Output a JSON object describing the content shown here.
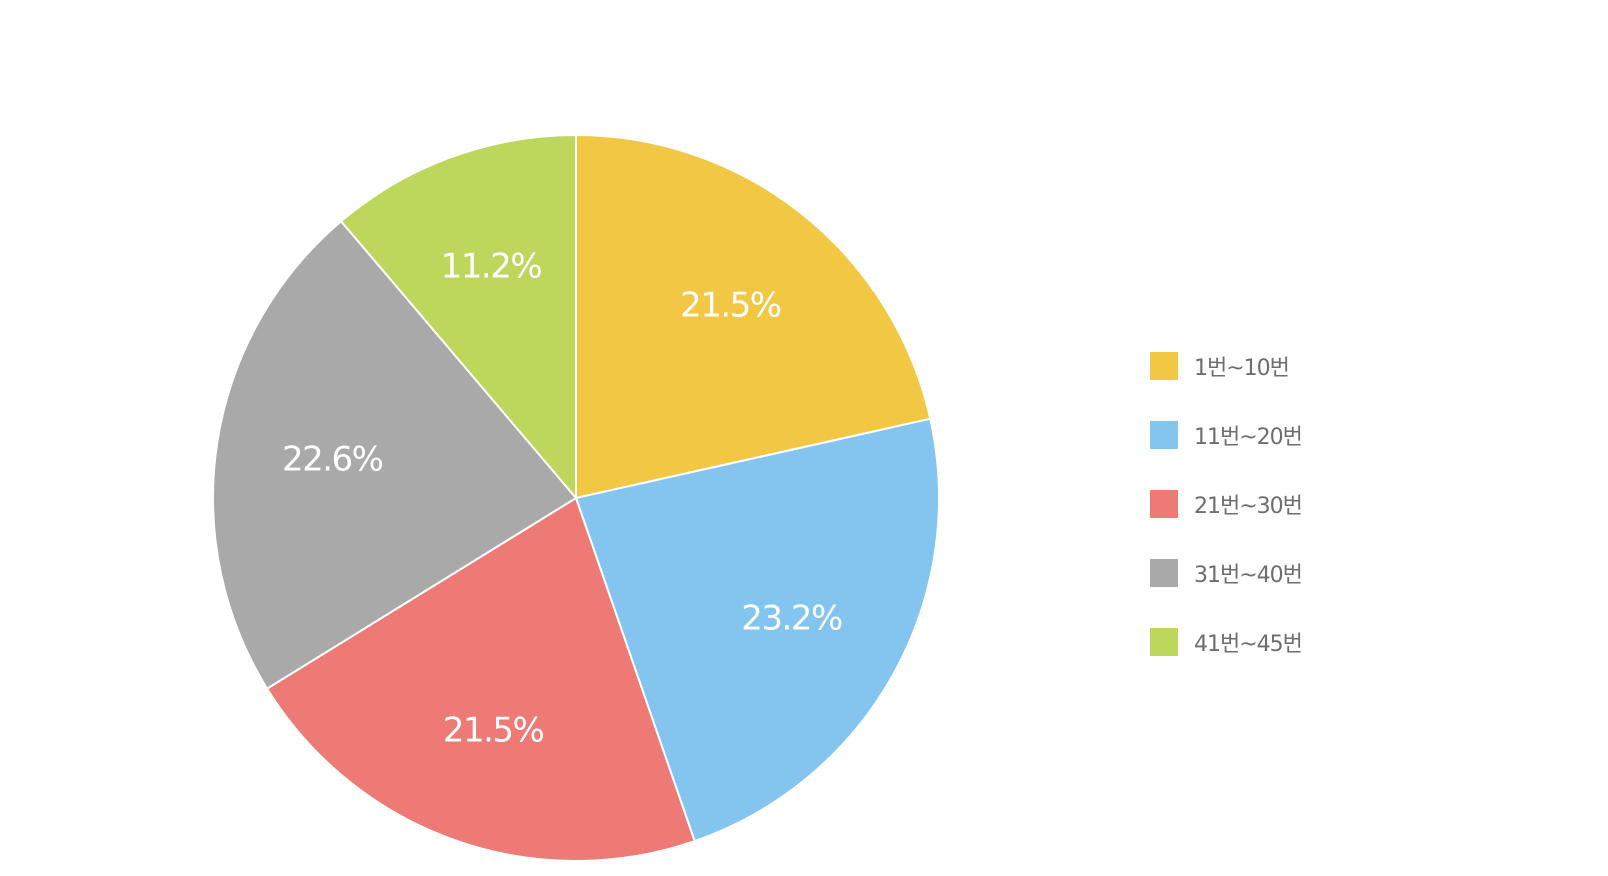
{
  "chart_data": {
    "type": "pie",
    "categories": [
      "1번~10번",
      "11번~20번",
      "21번~30번",
      "31번~40번",
      "41번~45번"
    ],
    "values": [
      21.5,
      23.2,
      21.5,
      22.6,
      11.2
    ],
    "value_labels": [
      "21.5%",
      "23.2%",
      "21.5%",
      "22.6%",
      "11.2%"
    ],
    "colors": [
      "#F2C744",
      "#83C5EE",
      "#EE7A76",
      "#A9A9A9",
      "#BCD75B"
    ],
    "start": "12 o'clock",
    "direction": "clockwise",
    "legend_position": "right"
  }
}
